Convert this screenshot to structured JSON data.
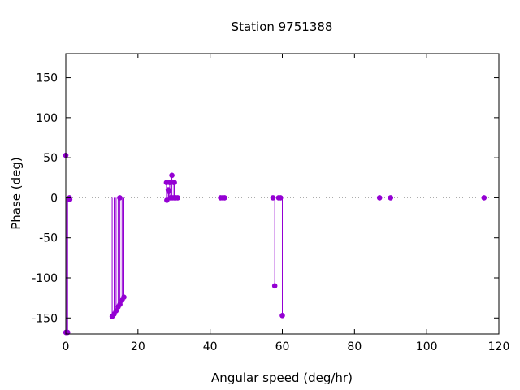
{
  "chart_data": {
    "type": "scatter",
    "style": "impulses-with-points",
    "title": "Station 9751388",
    "xlabel": "Angular speed (deg/hr)",
    "ylabel": "Phase (deg)",
    "xlim": [
      0,
      120
    ],
    "ylim": [
      -170,
      180
    ],
    "xticks": [
      0,
      20,
      40,
      60,
      80,
      100,
      120
    ],
    "yticks": [
      -150,
      -100,
      -50,
      0,
      50,
      100,
      150
    ],
    "grid": false,
    "zero_line": "dotted",
    "color": "#9400d3",
    "points": [
      {
        "x": 0.0,
        "y": 53
      },
      {
        "x": 0.04,
        "y": -168
      },
      {
        "x": 0.08,
        "y": -168
      },
      {
        "x": 0.5,
        "y": -168
      },
      {
        "x": 1.0,
        "y": 0
      },
      {
        "x": 1.1,
        "y": -2
      },
      {
        "x": 12.85,
        "y": -148
      },
      {
        "x": 13.4,
        "y": -145
      },
      {
        "x": 13.94,
        "y": -141
      },
      {
        "x": 14.5,
        "y": -136
      },
      {
        "x": 14.96,
        "y": 0
      },
      {
        "x": 15.0,
        "y": -133
      },
      {
        "x": 15.6,
        "y": -128
      },
      {
        "x": 16.1,
        "y": -124
      },
      {
        "x": 27.9,
        "y": 19
      },
      {
        "x": 28.0,
        "y": -3
      },
      {
        "x": 28.4,
        "y": 10
      },
      {
        "x": 28.5,
        "y": 8
      },
      {
        "x": 28.8,
        "y": 19
      },
      {
        "x": 29.0,
        "y": 0
      },
      {
        "x": 29.4,
        "y": 28
      },
      {
        "x": 29.5,
        "y": 0
      },
      {
        "x": 29.96,
        "y": 19
      },
      {
        "x": 30.0,
        "y": 0
      },
      {
        "x": 30.08,
        "y": 19
      },
      {
        "x": 30.5,
        "y": 0
      },
      {
        "x": 31.0,
        "y": 0
      },
      {
        "x": 42.9,
        "y": 0
      },
      {
        "x": 43.5,
        "y": 0
      },
      {
        "x": 44.0,
        "y": 0
      },
      {
        "x": 57.4,
        "y": 0
      },
      {
        "x": 57.9,
        "y": -110
      },
      {
        "x": 58.98,
        "y": 0
      },
      {
        "x": 59.5,
        "y": 0
      },
      {
        "x": 60.0,
        "y": -147
      },
      {
        "x": 86.95,
        "y": 0
      },
      {
        "x": 90.0,
        "y": 0
      },
      {
        "x": 115.9,
        "y": 0
      }
    ]
  }
}
